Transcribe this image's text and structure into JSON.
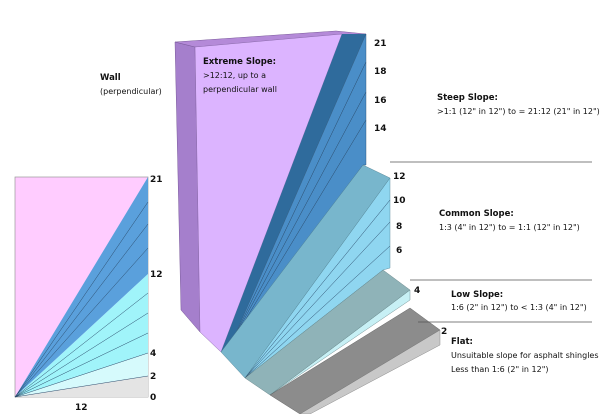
{
  "colors": {
    "extreme": "#dcb4ff",
    "extreme_side": "#a57fcc",
    "steep": "#4a8ec8",
    "steep_dark": "#2f6b9c",
    "common": "#8fd6f0",
    "common_top": "#78b6cc",
    "low": "#c7f0f5",
    "low_top": "#8fb3b8",
    "flat": "#8c8c8c",
    "flat_side": "#c8c8c8",
    "left_pink": "#ffccff",
    "left_steep": "#5aa0dc",
    "left_common": "#a0f4fa",
    "left_low": "#d6fafc",
    "left_flat": "#e4e4e4"
  },
  "wall": {
    "title": "Wall",
    "subtitle": "(perpendicular)"
  },
  "left_chart": {
    "right_ticks": [
      "21",
      "12",
      "4",
      "2",
      "0"
    ],
    "bottom_label": "12"
  },
  "block_ticks": [
    "21",
    "18",
    "16",
    "14",
    "12",
    "10",
    "8",
    "6",
    "4",
    "2"
  ],
  "categories": {
    "extreme": {
      "title": "Extreme Slope:",
      "lines": [
        ">12:12, up to a",
        "perpendicular wall"
      ]
    },
    "steep": {
      "title": "Steep Slope:",
      "lines": [
        ">1:1 (12\" in 12\") to = 21:12 (21\" in 12\")"
      ]
    },
    "common": {
      "title": "Common Slope:",
      "lines": [
        "1:3 (4\" in 12\") to = 1:1 (12\" in 12\")"
      ]
    },
    "low": {
      "title": "Low Slope:",
      "lines": [
        "1:6 (2\" in 12\") to < 1:3 (4\" in 12\")"
      ]
    },
    "flat": {
      "title": "Flat:",
      "lines": [
        "Unsuitable slope for asphalt shingles",
        "Less than 1:6 (2\" in 12\")"
      ]
    }
  }
}
